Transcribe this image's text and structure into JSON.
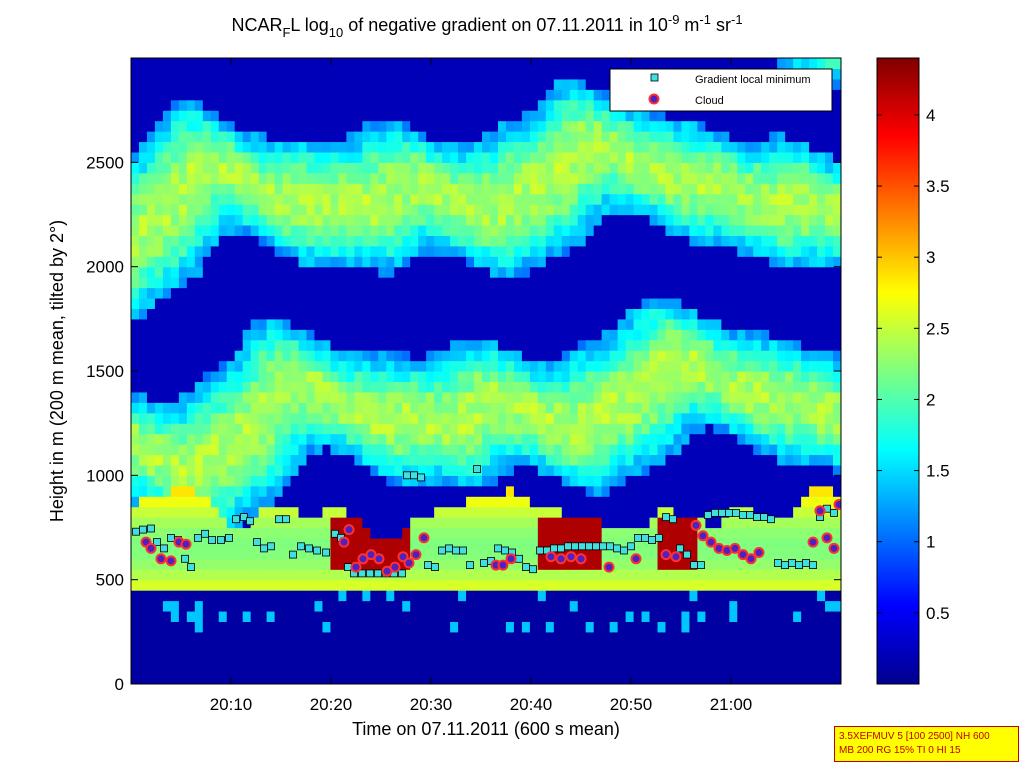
{
  "title": {
    "prefix": "NCAR",
    "sub1": "F",
    "mid": "L log",
    "sub2": "10",
    "text": " of negative gradient on 07.11.2011 in 10",
    "sup1": "-9",
    "unit1": " m",
    "sup2": "-1",
    "unit2": " sr",
    "sup3": "-1"
  },
  "info_box": {
    "line1": "3.5XEFMUV 5 [100 2500] NH 600",
    "line2": "MB 200 RG 15% TI 0 HI 15"
  },
  "chart_data": {
    "type": "heatmap",
    "xlabel": "Time on 07.11.2011 (600 s mean)",
    "ylabel": "Height in m (200 m mean, tilted by 2°)",
    "x_ticks": [
      "20:10",
      "20:20",
      "20:30",
      "20:40",
      "20:50",
      "21:00"
    ],
    "x_tick_minutes": [
      10,
      20,
      30,
      40,
      50,
      60
    ],
    "xlim_minutes": [
      0,
      71
    ],
    "y_ticks": [
      0,
      500,
      1000,
      1500,
      2000,
      2500
    ],
    "ylim": [
      0,
      3000
    ],
    "colorbar": {
      "ticks": [
        0.5,
        1,
        1.5,
        2,
        2.5,
        3,
        3.5,
        4
      ],
      "range": [
        0,
        4.4
      ],
      "colormap": "jet"
    },
    "legend": {
      "position": "top-right",
      "entries": [
        "Gradient local minimum",
        "Cloud"
      ]
    },
    "colors": {
      "marker_square_fill": "#40e0e0",
      "marker_circle_edge": "#ff3030",
      "marker_circle_fill": "#5020c0"
    },
    "series": [
      {
        "name": "Gradient local minimum",
        "marker": "square",
        "points": [
          [
            0.5,
            730
          ],
          [
            1.2,
            740
          ],
          [
            2,
            745
          ],
          [
            2.6,
            680
          ],
          [
            3.3,
            650
          ],
          [
            4,
            700
          ],
          [
            4.7,
            690
          ],
          [
            5.4,
            600
          ],
          [
            6,
            560
          ],
          [
            6.7,
            700
          ],
          [
            7.4,
            720
          ],
          [
            8.1,
            690
          ],
          [
            9,
            690
          ],
          [
            9.8,
            700
          ],
          [
            10.5,
            790
          ],
          [
            11.3,
            800
          ],
          [
            11.9,
            780
          ],
          [
            12.6,
            680
          ],
          [
            13.3,
            650
          ],
          [
            14,
            660
          ],
          [
            14.8,
            790
          ],
          [
            15.5,
            790
          ],
          [
            16.2,
            620
          ],
          [
            17,
            660
          ],
          [
            17.8,
            650
          ],
          [
            18.6,
            640
          ],
          [
            19.5,
            630
          ],
          [
            20.4,
            720
          ],
          [
            21,
            700
          ],
          [
            21.7,
            560
          ],
          [
            22.3,
            530
          ],
          [
            23.1,
            530
          ],
          [
            23.9,
            530
          ],
          [
            24.7,
            530
          ],
          [
            25.5,
            530
          ],
          [
            26.3,
            530
          ],
          [
            27.1,
            530
          ],
          [
            27.6,
            1000
          ],
          [
            28.3,
            1000
          ],
          [
            29,
            990
          ],
          [
            29.7,
            570
          ],
          [
            30.4,
            560
          ],
          [
            31.1,
            640
          ],
          [
            31.8,
            650
          ],
          [
            32.5,
            640
          ],
          [
            33.2,
            640
          ],
          [
            33.9,
            570
          ],
          [
            34.6,
            1030
          ],
          [
            35.3,
            580
          ],
          [
            36,
            590
          ],
          [
            36.7,
            650
          ],
          [
            37.4,
            640
          ],
          [
            38.1,
            630
          ],
          [
            38.8,
            600
          ],
          [
            39.5,
            560
          ],
          [
            40.2,
            550
          ],
          [
            40.9,
            640
          ],
          [
            41.6,
            640
          ],
          [
            42.3,
            650
          ],
          [
            43,
            650
          ],
          [
            43.7,
            660
          ],
          [
            44.4,
            660
          ],
          [
            45.1,
            660
          ],
          [
            45.8,
            660
          ],
          [
            46.5,
            660
          ],
          [
            47.2,
            660
          ],
          [
            47.9,
            660
          ],
          [
            48.6,
            650
          ],
          [
            49.3,
            640
          ],
          [
            50,
            660
          ],
          [
            50.7,
            700
          ],
          [
            51.4,
            700
          ],
          [
            52.1,
            690
          ],
          [
            52.8,
            700
          ],
          [
            53.5,
            800
          ],
          [
            54.2,
            790
          ],
          [
            54.9,
            650
          ],
          [
            55.6,
            620
          ],
          [
            56.3,
            570
          ],
          [
            57,
            570
          ],
          [
            57.7,
            810
          ],
          [
            58.4,
            820
          ],
          [
            59.1,
            820
          ],
          [
            59.8,
            820
          ],
          [
            60.5,
            820
          ],
          [
            61.2,
            810
          ],
          [
            61.9,
            810
          ],
          [
            62.6,
            800
          ],
          [
            63.3,
            800
          ],
          [
            64,
            790
          ],
          [
            64.7,
            580
          ],
          [
            65.4,
            570
          ],
          [
            66.1,
            580
          ],
          [
            66.8,
            570
          ],
          [
            67.5,
            580
          ],
          [
            68.2,
            570
          ],
          [
            68.9,
            800
          ],
          [
            69.6,
            840
          ],
          [
            70.3,
            820
          ]
        ]
      },
      {
        "name": "Cloud",
        "marker": "circle",
        "points": [
          [
            1.5,
            680
          ],
          [
            2,
            650
          ],
          [
            3,
            600
          ],
          [
            4,
            590
          ],
          [
            4.8,
            680
          ],
          [
            5.5,
            670
          ],
          [
            21.3,
            680
          ],
          [
            21.8,
            740
          ],
          [
            22.5,
            560
          ],
          [
            23.2,
            600
          ],
          [
            24,
            620
          ],
          [
            24.8,
            600
          ],
          [
            25.6,
            540
          ],
          [
            26.4,
            560
          ],
          [
            27.2,
            610
          ],
          [
            27.8,
            580
          ],
          [
            28.5,
            620
          ],
          [
            29.3,
            700
          ],
          [
            36.5,
            570
          ],
          [
            37.2,
            570
          ],
          [
            38,
            600
          ],
          [
            42,
            610
          ],
          [
            43,
            600
          ],
          [
            44,
            610
          ],
          [
            45,
            600
          ],
          [
            47.8,
            560
          ],
          [
            50.5,
            600
          ],
          [
            53.5,
            620
          ],
          [
            54.5,
            610
          ],
          [
            56.5,
            760
          ],
          [
            57.2,
            710
          ],
          [
            58,
            680
          ],
          [
            58.8,
            650
          ],
          [
            59.6,
            640
          ],
          [
            60.4,
            650
          ],
          [
            61.2,
            620
          ],
          [
            62,
            600
          ],
          [
            62.8,
            630
          ],
          [
            68.2,
            680
          ],
          [
            68.9,
            830
          ],
          [
            69.6,
            700
          ],
          [
            70.3,
            650
          ],
          [
            70.8,
            860
          ]
        ]
      }
    ]
  }
}
